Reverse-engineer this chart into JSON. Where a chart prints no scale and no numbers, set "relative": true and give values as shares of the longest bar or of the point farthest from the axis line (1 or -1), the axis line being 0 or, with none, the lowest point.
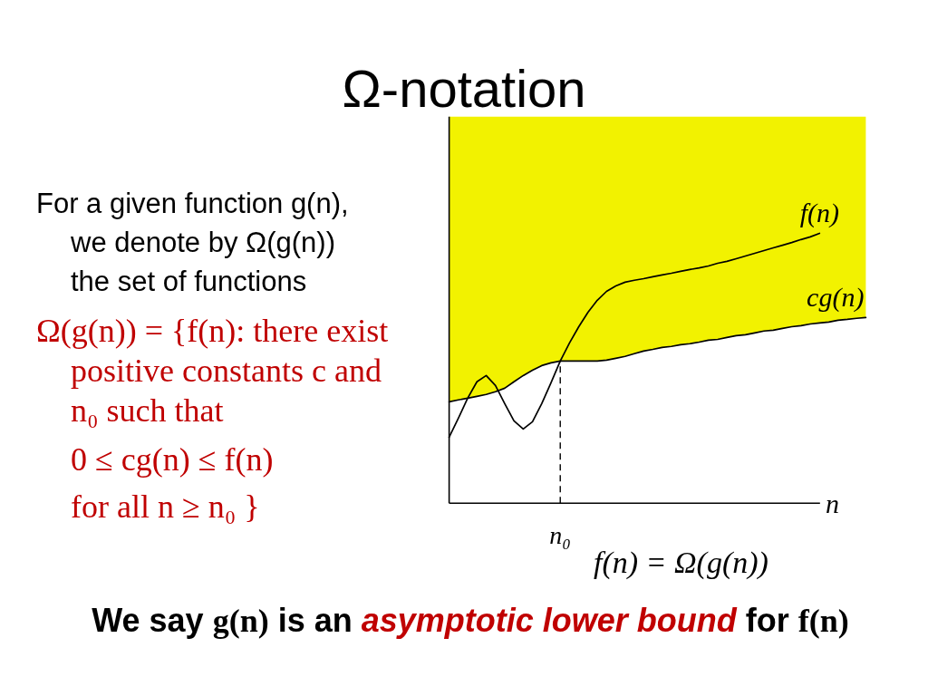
{
  "chart_data": {
    "type": "line",
    "title": "Ω-notation",
    "annotations": [
      "For a given function g(n), we denote by Ω(g(n)) the set of functions",
      "Ω(g(n)) = {f(n): there exist positive constants c and n₀ such that",
      "0 ≤ cg(n) ≤ f(n)",
      "for all n ≥ n₀ }",
      "n₀",
      "f(n) = Ω(g(n))",
      "We say g(n) is an asymptotic lower bound for f(n)"
    ],
    "xlabel": "n",
    "categories": [
      null,
      null,
      null,
      null,
      null,
      null,
      null,
      null,
      null,
      null,
      null,
      null,
      null,
      null,
      null,
      null,
      null,
      null,
      null,
      null,
      null,
      null,
      null,
      null,
      null,
      null,
      null,
      null,
      null,
      null,
      null,
      null,
      null,
      null,
      null,
      null,
      null,
      null,
      null,
      null,
      null,
      null,
      null,
      null,
      null,
      null
    ],
    "relative": true,
    "series": [
      {
        "name": "f(n)",
        "color": "#000000",
        "values": [
          0.245,
          0.315,
          0.389,
          0.45,
          0.473,
          0.436,
          0.369,
          0.305,
          0.275,
          0.302,
          0.369,
          0.446,
          0.527,
          0.594,
          0.654,
          0.708,
          0.752,
          0.785,
          0.805,
          0.819,
          0.826,
          0.832,
          0.839,
          0.846,
          0.852,
          0.859,
          0.866,
          0.872,
          0.879,
          0.889,
          0.896,
          0.906,
          0.916,
          0.926,
          0.936,
          0.946,
          0.956,
          0.966,
          0.977,
          0.987,
          1.0,
          null,
          null,
          null,
          null,
          null
        ]
      },
      {
        "name": "cg(n)",
        "color": "#000000",
        "values": [
          0.376,
          0.383,
          0.389,
          0.396,
          0.403,
          0.413,
          0.426,
          0.45,
          0.473,
          0.493,
          0.51,
          0.52,
          0.527,
          0.527,
          0.527,
          0.527,
          0.527,
          0.53,
          0.537,
          0.544,
          0.554,
          0.564,
          0.57,
          0.577,
          0.581,
          0.587,
          0.591,
          0.597,
          0.604,
          0.607,
          0.614,
          0.621,
          0.624,
          0.631,
          0.638,
          0.641,
          0.648,
          0.654,
          0.658,
          0.664,
          0.668,
          0.671,
          0.678,
          0.681,
          0.685,
          0.688
        ],
        "lower": [
          0.376,
          0.383,
          0.389,
          0.396,
          0.403,
          0.413,
          0.426,
          0.45,
          0.473,
          0.493,
          0.51,
          0.52,
          0.527,
          0.527,
          0.527,
          0.527,
          0.527,
          0.53,
          0.537,
          0.544,
          0.554,
          0.564,
          0.57,
          0.577,
          0.581,
          0.587,
          0.591,
          0.597,
          0.604,
          0.607,
          0.614,
          0.621,
          0.624,
          0.631,
          0.638,
          0.641,
          0.648,
          0.654,
          0.658,
          0.664,
          0.668,
          0.671,
          0.678,
          0.681,
          0.685,
          0.688
        ],
        "upper": [
          1.433,
          1.433,
          1.433,
          1.433,
          1.433,
          1.433,
          1.433,
          1.433,
          1.433,
          1.433,
          1.433,
          1.433,
          1.433,
          1.433,
          1.433,
          1.433,
          1.433,
          1.433,
          1.433,
          1.433,
          1.433,
          1.433,
          1.433,
          1.433,
          1.433,
          1.433,
          1.433,
          1.433,
          1.433,
          1.433,
          1.433,
          1.433,
          1.433,
          1.433,
          1.433,
          1.433,
          1.433,
          1.433,
          1.433,
          1.433,
          1.433,
          1.433,
          1.433,
          1.433,
          1.433,
          1.433
        ]
      }
    ]
  }
}
